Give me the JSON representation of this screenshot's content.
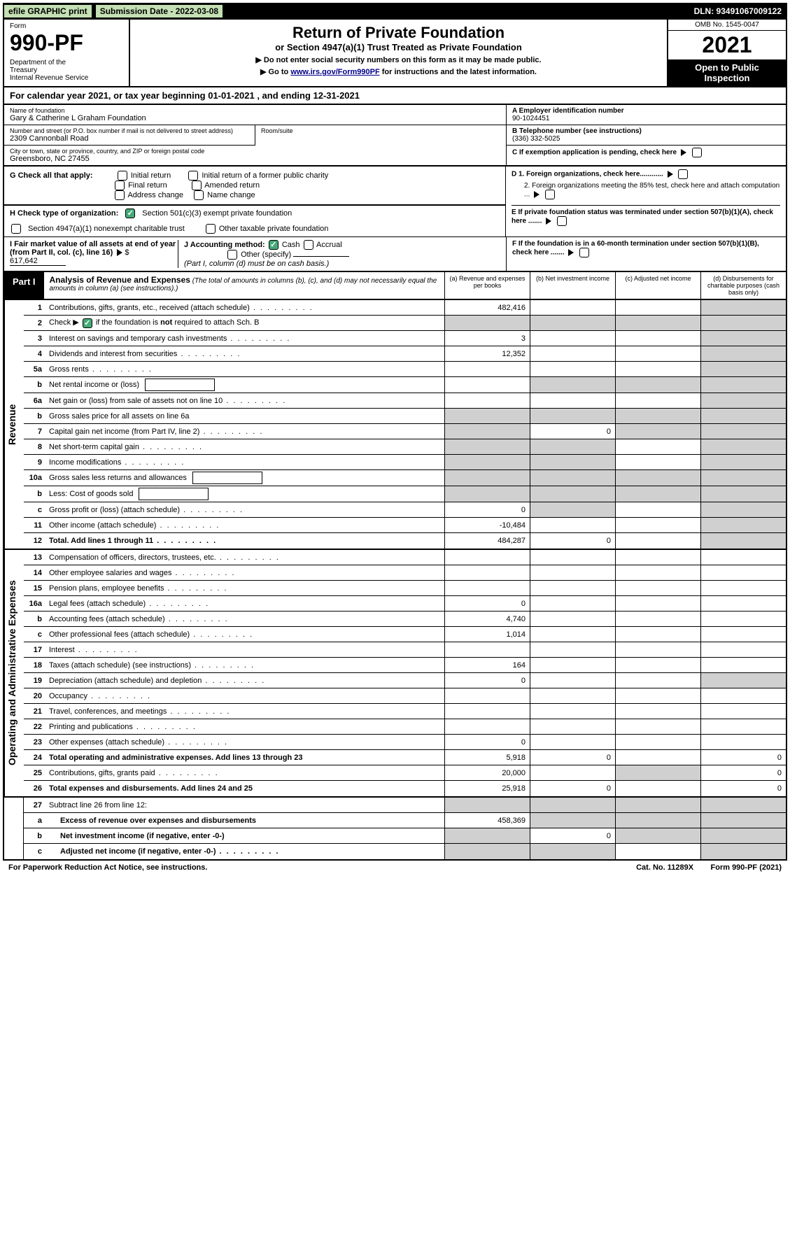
{
  "topbar": {
    "efile": "efile GRAPHIC print",
    "submission": "Submission Date - 2022-03-08",
    "dln": "DLN: 93491067009122"
  },
  "header": {
    "form_label": "Form",
    "form_num": "990-PF",
    "dept": "Department of the Treasury\nInternal Revenue Service",
    "title": "Return of Private Foundation",
    "subtitle": "or Section 4947(a)(1) Trust Treated as Private Foundation",
    "note1": "▶ Do not enter social security numbers on this form as it may be made public.",
    "note2_pre": "▶ Go to ",
    "note2_link": "www.irs.gov/Form990PF",
    "note2_post": " for instructions and the latest information.",
    "omb": "OMB No. 1545-0047",
    "year": "2021",
    "open": "Open to Public Inspection"
  },
  "calendar": "For calendar year 2021, or tax year beginning 01-01-2021               , and ending 12-31-2021",
  "info": {
    "name_label": "Name of foundation",
    "name": "Gary & Catherine L Graham Foundation",
    "addr_label": "Number and street (or P.O. box number if mail is not delivered to street address)",
    "addr": "2309 Cannonball Road",
    "room_label": "Room/suite",
    "city_label": "City or town, state or province, country, and ZIP or foreign postal code",
    "city": "Greensboro, NC  27455",
    "a_label": "A Employer identification number",
    "a_val": "90-1024451",
    "b_label": "B Telephone number (see instructions)",
    "b_val": "(336) 332-5025",
    "c_label": "C If exemption application is pending, check here",
    "d1": "D 1. Foreign organizations, check here............",
    "d2": "2. Foreign organizations meeting the 85% test, check here and attach computation ...",
    "e": "E  If private foundation status was terminated under section 507(b)(1)(A), check here .......",
    "f": "F  If the foundation is in a 60-month termination under section 507(b)(1)(B), check here ......."
  },
  "g": {
    "label": "G Check all that apply:",
    "opts": [
      "Initial return",
      "Initial return of a former public charity",
      "Final return",
      "Amended return",
      "Address change",
      "Name change"
    ]
  },
  "h": {
    "label": "H Check type of organization:",
    "opt1": "Section 501(c)(3) exempt private foundation",
    "opt2": "Section 4947(a)(1) nonexempt charitable trust",
    "opt3": "Other taxable private foundation"
  },
  "i": {
    "label": "I Fair market value of all assets at end of year (from Part II, col. (c), line 16)",
    "val": "617,642"
  },
  "j": {
    "label": "J Accounting method:",
    "cash": "Cash",
    "accrual": "Accrual",
    "other": "Other (specify)",
    "note": "(Part I, column (d) must be on cash basis.)"
  },
  "part1": {
    "label": "Part I",
    "title": "Analysis of Revenue and Expenses",
    "desc": "(The total of amounts in columns (b), (c), and (d) may not necessarily equal the amounts in column (a) (see instructions).)",
    "cols": {
      "a": "(a)   Revenue and expenses per books",
      "b": "(b)   Net investment income",
      "c": "(c)   Adjusted net income",
      "d": "(d)   Disbursements for charitable purposes (cash basis only)"
    }
  },
  "sections": {
    "revenue": "Revenue",
    "operating": "Operating and Administrative Expenses"
  },
  "lines": {
    "1": {
      "n": "1",
      "d": "Contributions, gifts, grants, etc., received (attach schedule)",
      "a": "482,416"
    },
    "2": {
      "n": "2",
      "d": "Check ▶",
      "d2": " if the foundation is not required to attach Sch. B"
    },
    "3": {
      "n": "3",
      "d": "Interest on savings and temporary cash investments",
      "a": "3"
    },
    "4": {
      "n": "4",
      "d": "Dividends and interest from securities",
      "a": "12,352"
    },
    "5a": {
      "n": "5a",
      "d": "Gross rents"
    },
    "5b": {
      "n": "b",
      "d": "Net rental income or (loss)"
    },
    "6a": {
      "n": "6a",
      "d": "Net gain or (loss) from sale of assets not on line 10"
    },
    "6b": {
      "n": "b",
      "d": "Gross sales price for all assets on line 6a"
    },
    "7": {
      "n": "7",
      "d": "Capital gain net income (from Part IV, line 2)",
      "b": "0"
    },
    "8": {
      "n": "8",
      "d": "Net short-term capital gain"
    },
    "9": {
      "n": "9",
      "d": "Income modifications"
    },
    "10a": {
      "n": "10a",
      "d": "Gross sales less returns and allowances"
    },
    "10b": {
      "n": "b",
      "d": "Less: Cost of goods sold"
    },
    "10c": {
      "n": "c",
      "d": "Gross profit or (loss) (attach schedule)",
      "a": "0"
    },
    "11": {
      "n": "11",
      "d": "Other income (attach schedule)",
      "a": "-10,484"
    },
    "12": {
      "n": "12",
      "d": "Total. Add lines 1 through 11",
      "a": "484,287",
      "b": "0"
    },
    "13": {
      "n": "13",
      "d": "Compensation of officers, directors, trustees, etc."
    },
    "14": {
      "n": "14",
      "d": "Other employee salaries and wages"
    },
    "15": {
      "n": "15",
      "d": "Pension plans, employee benefits"
    },
    "16a": {
      "n": "16a",
      "d": "Legal fees (attach schedule)",
      "a": "0"
    },
    "16b": {
      "n": "b",
      "d": "Accounting fees (attach schedule)",
      "a": "4,740"
    },
    "16c": {
      "n": "c",
      "d": "Other professional fees (attach schedule)",
      "a": "1,014"
    },
    "17": {
      "n": "17",
      "d": "Interest"
    },
    "18": {
      "n": "18",
      "d": "Taxes (attach schedule) (see instructions)",
      "a": "164"
    },
    "19": {
      "n": "19",
      "d": "Depreciation (attach schedule) and depletion",
      "a": "0"
    },
    "20": {
      "n": "20",
      "d": "Occupancy"
    },
    "21": {
      "n": "21",
      "d": "Travel, conferences, and meetings"
    },
    "22": {
      "n": "22",
      "d": "Printing and publications"
    },
    "23": {
      "n": "23",
      "d": "Other expenses (attach schedule)",
      "a": "0"
    },
    "24": {
      "n": "24",
      "d": "Total operating and administrative expenses. Add lines 13 through 23",
      "a": "5,918",
      "b": "0",
      "dd": "0"
    },
    "25": {
      "n": "25",
      "d": "Contributions, gifts, grants paid",
      "a": "20,000",
      "dd": "0"
    },
    "26": {
      "n": "26",
      "d": "Total expenses and disbursements. Add lines 24 and 25",
      "a": "25,918",
      "b": "0",
      "dd": "0"
    },
    "27": {
      "n": "27",
      "d": "Subtract line 26 from line 12:"
    },
    "27a": {
      "n": "a",
      "d": "Excess of revenue over expenses and disbursements",
      "a": "458,369"
    },
    "27b": {
      "n": "b",
      "d": "Net investment income (if negative, enter -0-)",
      "b": "0"
    },
    "27c": {
      "n": "c",
      "d": "Adjusted net income (if negative, enter -0-)"
    }
  },
  "footer": {
    "left": "For Paperwork Reduction Act Notice, see instructions.",
    "mid": "Cat. No. 11289X",
    "right": "Form 990-PF (2021)"
  }
}
